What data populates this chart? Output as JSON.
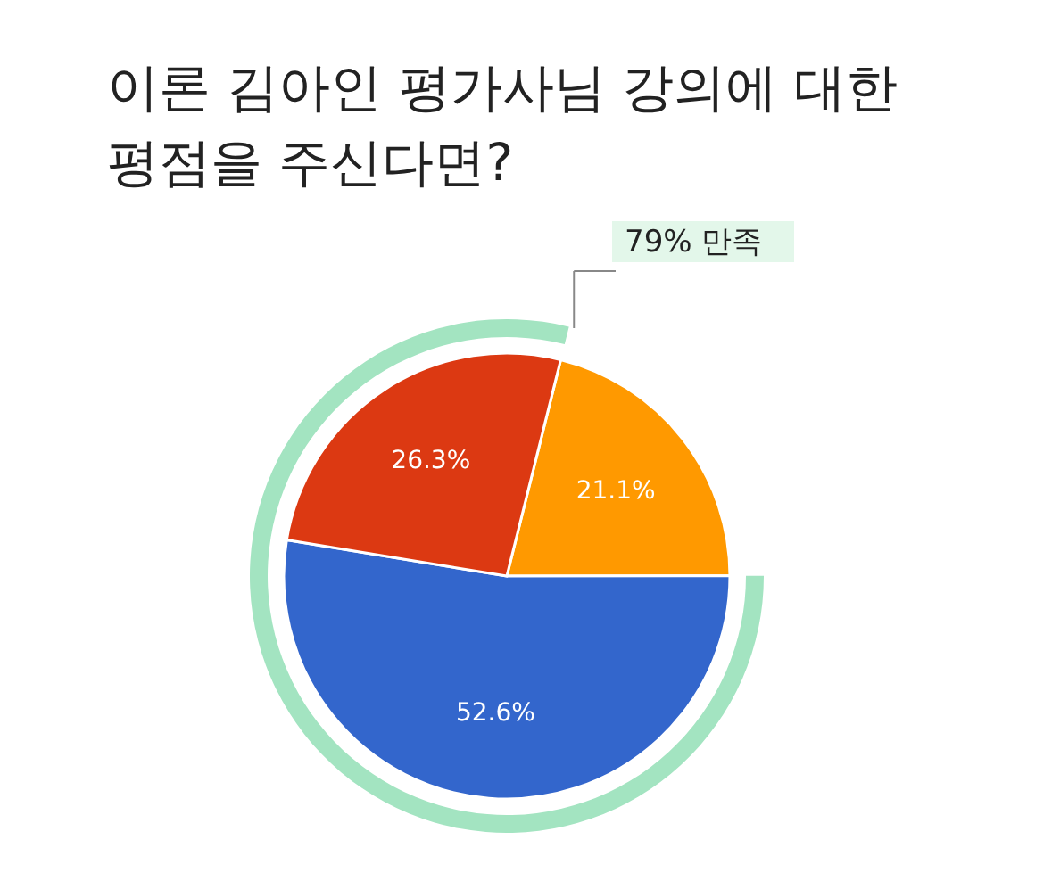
{
  "chart_data": {
    "type": "pie",
    "title": "이론 김아인 평가사님 강의에 대한\n평점을 주신다면?",
    "categories": [
      null,
      null,
      null
    ],
    "values": [
      21.1,
      52.6,
      26.3
    ],
    "colors": [
      "#ff9900",
      "#3366cc",
      "#dc3912"
    ],
    "value_labels": [
      "21.1%",
      "52.6%",
      "26.3%"
    ],
    "annotations": [
      "79% 만족"
    ]
  }
}
